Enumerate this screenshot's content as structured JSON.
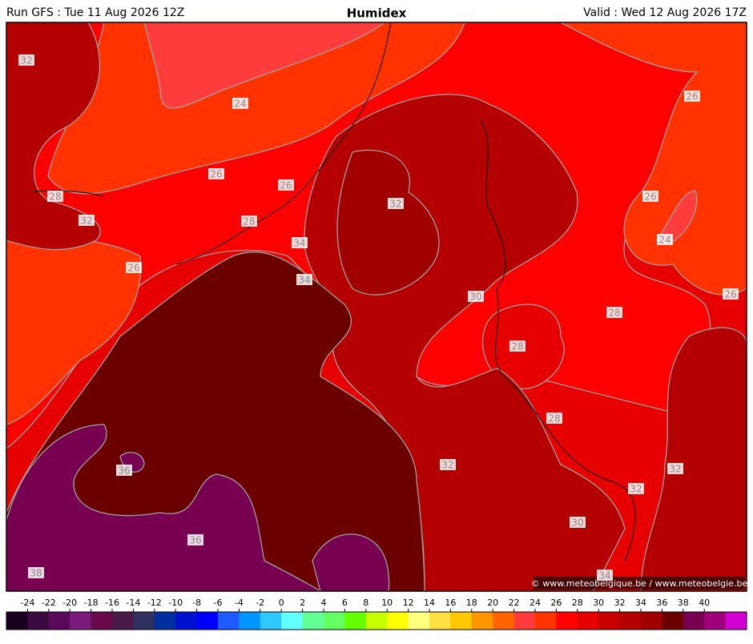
{
  "header": {
    "run": "Run GFS : Tue 11 Aug 2026 12Z",
    "title": "Humidex",
    "valid": "Valid : Wed 12 Aug 2026 17Z"
  },
  "map": {
    "contour_labels": [
      32,
      24,
      26,
      26,
      28,
      32,
      28,
      34,
      32,
      26,
      34,
      30,
      28,
      28,
      36,
      32,
      36,
      38,
      26,
      26,
      24,
      26,
      28,
      32,
      32,
      30,
      34
    ],
    "copyright": "© www.meteobelgique.be / www.meteobelgie.be"
  },
  "colorbar": {
    "ticks": [
      -24,
      -22,
      -20,
      -18,
      -16,
      -14,
      -12,
      -10,
      -8,
      -6,
      -4,
      -2,
      0,
      2,
      4,
      6,
      8,
      10,
      12,
      14,
      16,
      18,
      20,
      22,
      24,
      26,
      28,
      30,
      32,
      34,
      36,
      38,
      40
    ],
    "colors": [
      "#1a0020",
      "#3a0a40",
      "#5a0a5a",
      "#7a1a7a",
      "#6a0a4a",
      "#4a1a4a",
      "#303060",
      "#0030a0",
      "#0010d0",
      "#0000ff",
      "#1e5aff",
      "#0096ff",
      "#30c8ff",
      "#64ffff",
      "#64ff96",
      "#64ff64",
      "#64ff00",
      "#c8ff00",
      "#ffff00",
      "#ffff80",
      "#ffe040",
      "#ffc800",
      "#ff9600",
      "#ff6400",
      "#ff3c3c",
      "#ff3200",
      "#ff0000",
      "#e60000",
      "#c80000",
      "#b40000",
      "#a00000",
      "#6a0000",
      "#780050",
      "#a0007a",
      "#d200d2"
    ]
  }
}
